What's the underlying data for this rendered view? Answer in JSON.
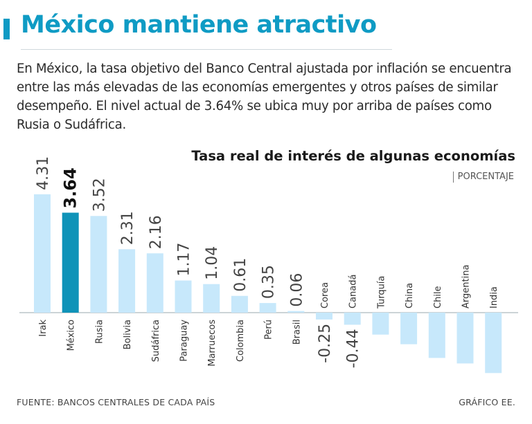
{
  "header": {
    "title": "México mantiene atractivo",
    "subtitle": "En México, la tasa objetivo del Banco Central ajustada por inflación se encuentra entre las más elevadas de las economías emergentes y otros países de similar desempeño. El nivel actual de 3.64% se ubica muy por arriba de países como Rusia o Sudáfrica."
  },
  "colors": {
    "accent": "#0f9bc4",
    "bar": "#c7e8fb",
    "highlight": "#0f93b8"
  },
  "chart_data": {
    "type": "bar",
    "title": "Tasa real de interés de algunas economías",
    "unit": "PORCENTAJE",
    "categories": [
      "Irak",
      "México",
      "Rusia",
      "Bolivia",
      "Sudáfrica",
      "Paraguay",
      "Marruecos",
      "Colombia",
      "Perú",
      "Brasil",
      "Corea",
      "Canadá",
      "Turquía",
      "China",
      "Chile",
      "Argentina",
      "India"
    ],
    "values": [
      4.31,
      3.64,
      3.52,
      2.31,
      2.16,
      1.17,
      1.04,
      0.61,
      0.35,
      0.06,
      -0.25,
      -0.44,
      -0.8,
      -1.15,
      -1.65,
      -1.85,
      -2.2
    ],
    "value_labels": [
      "4.31",
      "3.64",
      "3.52",
      "2.31",
      "2.16",
      "1.17",
      "1.04",
      "0.61",
      "0.35",
      "0.06",
      "-0.25",
      "-0.44",
      "",
      "",
      "",
      "",
      ""
    ],
    "highlight": "México",
    "xlabel": "",
    "ylabel": "",
    "grid": false
  },
  "footer": {
    "source": "FUENTE: BANCOS CENTRALES DE CADA PAÍS",
    "credit": "GRÁFICO EE."
  }
}
